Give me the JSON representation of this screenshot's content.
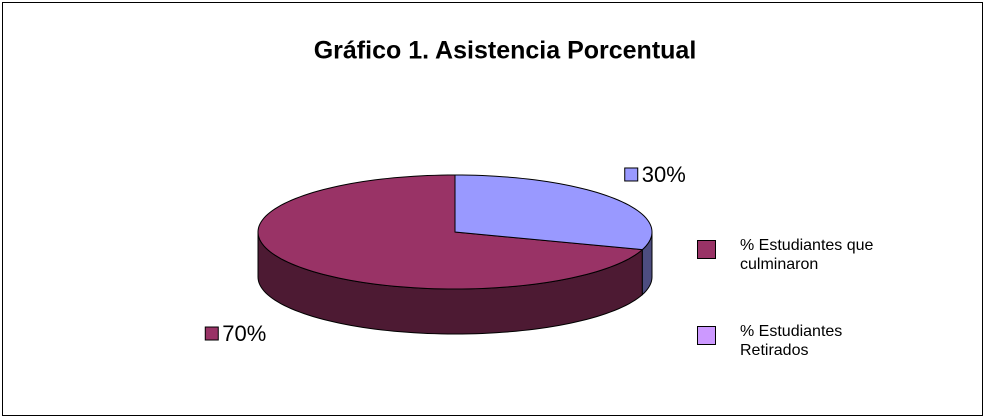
{
  "chart_data": {
    "type": "pie3d",
    "title": "Gráfico 1. Asistencia Porcentual",
    "categories": [
      "% Estudiantes que culminaron",
      "% Estudiantes Retirados"
    ],
    "values": [
      70,
      30
    ],
    "value_labels": [
      "70%",
      "30%"
    ],
    "colors": [
      "#993366",
      "#9999ff"
    ],
    "legend_colors": [
      "#993366",
      "#cc99ff"
    ],
    "legend": "right"
  }
}
